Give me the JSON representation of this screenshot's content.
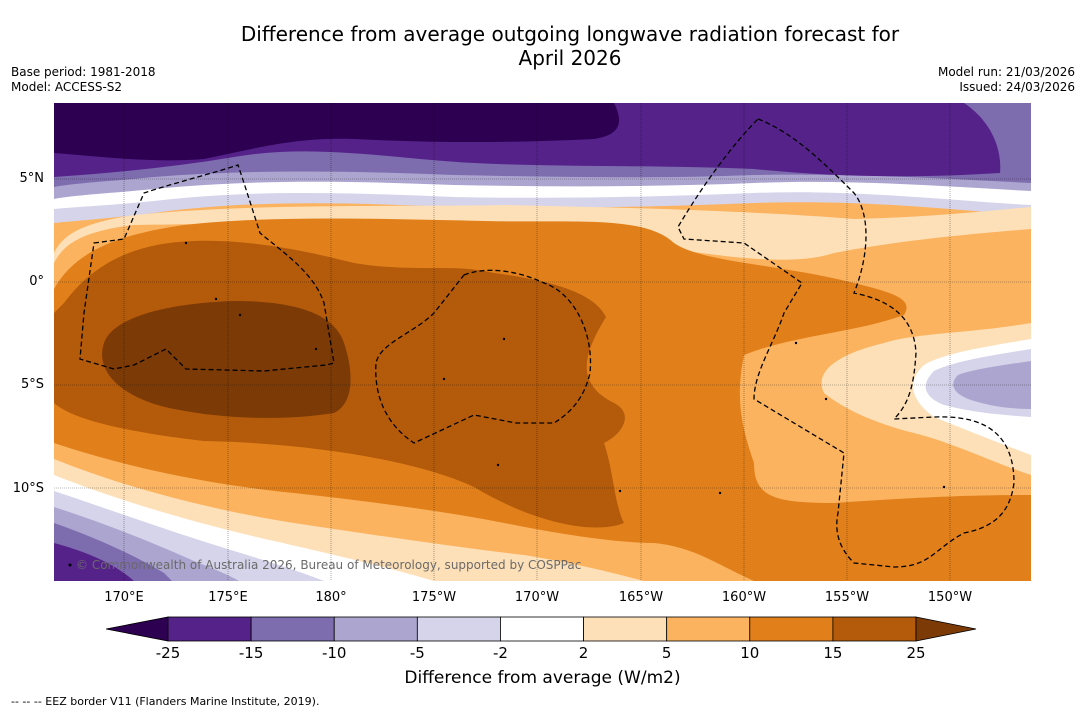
{
  "title_line1": "Difference from average outgoing longwave radiation forecast for",
  "title_line2": "April 2026",
  "base_period": "Base period: 1981-2018",
  "model": "Model: ACCESS-S2",
  "model_run": "Model run: 21/03/2026",
  "issued": "Issued: 24/03/2026",
  "lat_labels": [
    "5°N",
    "0°",
    "5°S",
    "10°S"
  ],
  "lon_labels": [
    "170°E",
    "175°E",
    "180°",
    "175°W",
    "170°W",
    "165°W",
    "160°W",
    "155°W",
    "150°W"
  ],
  "credit": "© Commonwealth of Australia 2026, Bureau of Meteorology, supported by COSPPac",
  "colorbar": {
    "ticks": [
      "-25",
      "-15",
      "-10",
      "-5",
      "-2",
      "2",
      "5",
      "10",
      "15",
      "25"
    ],
    "colors": [
      "#55228a",
      "#7d6cae",
      "#aca5cf",
      "#d5d4ea",
      "#ffffff",
      "#fde0b8",
      "#fbb35f",
      "#e1801b",
      "#b35a0b"
    ],
    "under_color": "#2d0052",
    "over_color": "#7c3a06",
    "title": "Difference from average (W/m2)"
  },
  "footnote": "--  --  -- EEZ border V11 (Flanders Marine Institute, 2019)."
}
